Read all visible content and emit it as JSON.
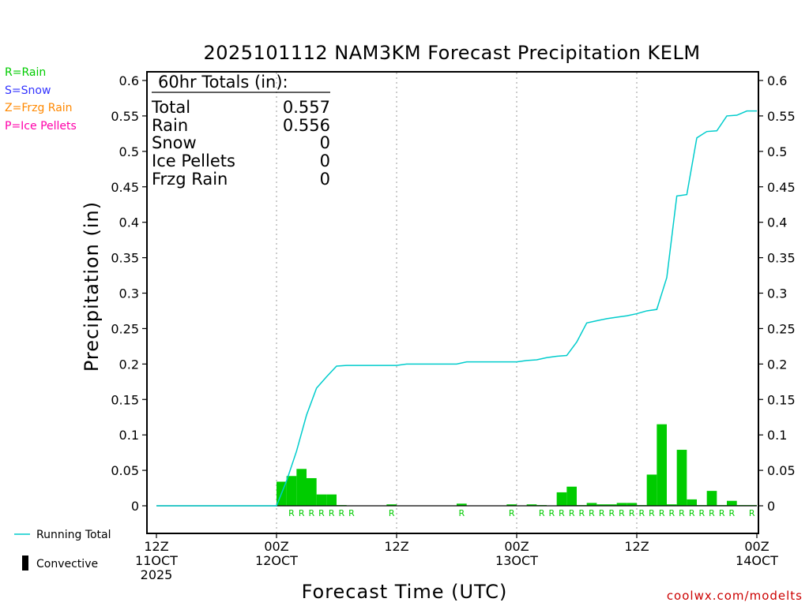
{
  "title": "2025101112 NAM3KM Forecast Precipitation KELM",
  "credit": "coolwx.com/modelts",
  "ptype_legend": [
    {
      "text": "R=Rain",
      "color": "#00cc00"
    },
    {
      "text": "S=Snow",
      "color": "#3333ff"
    },
    {
      "text": "Z=Frzg Rain",
      "color": "#ff8800"
    },
    {
      "text": "P=Ice Pellets",
      "color": "#ff00aa"
    }
  ],
  "totals": {
    "header": "60hr Totals (in):",
    "rows": [
      {
        "label": "Total",
        "value": "0.557"
      },
      {
        "label": "Rain",
        "value": "0.556"
      },
      {
        "label": "Snow",
        "value": "0"
      },
      {
        "label": "Ice Pellets",
        "value": "0"
      },
      {
        "label": "Frzg Rain",
        "value": "0"
      }
    ]
  },
  "bottom_legend": {
    "line_label": "Running Total",
    "bar_label": "Convective",
    "line_color": "#00cccc",
    "bar_color": "#000000"
  },
  "chart_data": {
    "type": "bar",
    "ylabel": "Precipitation (in)",
    "xlabel": "Forecast Time (UTC)",
    "xlim": [
      0,
      60
    ],
    "ylim": [
      -0.04,
      0.62
    ],
    "yticks": [
      "0",
      "0.05",
      "0.1",
      "0.15",
      "0.2",
      "0.25",
      "0.3",
      "0.35",
      "0.4",
      "0.45",
      "0.5",
      "0.55",
      "0.6"
    ],
    "xticks": [
      {
        "x": 0,
        "lines": [
          "12Z",
          "11OCT",
          "2025"
        ]
      },
      {
        "x": 12,
        "lines": [
          "00Z",
          "12OCT"
        ]
      },
      {
        "x": 24,
        "lines": [
          "12Z"
        ]
      },
      {
        "x": 36,
        "lines": [
          "00Z",
          "13OCT"
        ]
      },
      {
        "x": 48,
        "lines": [
          "12Z"
        ]
      },
      {
        "x": 60,
        "lines": [
          "00Z",
          "14OCT"
        ]
      }
    ],
    "grid_x": [
      12,
      24,
      36,
      48
    ],
    "bar_color": "#00cc00",
    "line_color": "#00cccc",
    "series": [
      {
        "name": "Precipitation",
        "hours": [
          13,
          14,
          15,
          16,
          17,
          18,
          19,
          24,
          31,
          36,
          38,
          39,
          41,
          42,
          43,
          44,
          45,
          46,
          47,
          48,
          49,
          50,
          51,
          52,
          53,
          54,
          55,
          56,
          57,
          58,
          59,
          60
        ],
        "values": [
          0.034,
          0.042,
          0.052,
          0.039,
          0.016,
          0.016,
          0.001,
          0.002,
          0.003,
          0.002,
          0.002,
          0.001,
          0.019,
          0.027,
          0.001,
          0.004,
          0.002,
          0.002,
          0.004,
          0.004,
          0.001,
          0.044,
          0.115,
          0.002,
          0.079,
          0.009,
          0.001,
          0.021,
          0.001,
          0.007,
          0.001,
          0.001
        ]
      }
    ],
    "running_total": {
      "hours": [
        0,
        12,
        13,
        14,
        15,
        16,
        17,
        18,
        19,
        24,
        25,
        30,
        31,
        36,
        37,
        38,
        39,
        40,
        41,
        42,
        43,
        44,
        45,
        46,
        47,
        48,
        49,
        50,
        51,
        52,
        53,
        54,
        55,
        56,
        57,
        58,
        59,
        60
      ],
      "values": [
        0,
        0,
        0.035,
        0.077,
        0.128,
        0.166,
        0.182,
        0.197,
        0.198,
        0.198,
        0.2,
        0.2,
        0.203,
        0.203,
        0.205,
        0.206,
        0.209,
        0.211,
        0.212,
        0.231,
        0.258,
        0.261,
        0.264,
        0.266,
        0.268,
        0.271,
        0.275,
        0.277,
        0.322,
        0.437,
        0.439,
        0.519,
        0.528,
        0.529,
        0.55,
        0.551,
        0.557,
        0.557
      ]
    },
    "ptype_labels": {
      "letter": "R",
      "hours": [
        14,
        15,
        16,
        17,
        18,
        19,
        20,
        24,
        31,
        36,
        39,
        40,
        41,
        42,
        43,
        44,
        45,
        46,
        47,
        48,
        49,
        50,
        51,
        52,
        53,
        54,
        55,
        56,
        57,
        58,
        60
      ]
    }
  }
}
